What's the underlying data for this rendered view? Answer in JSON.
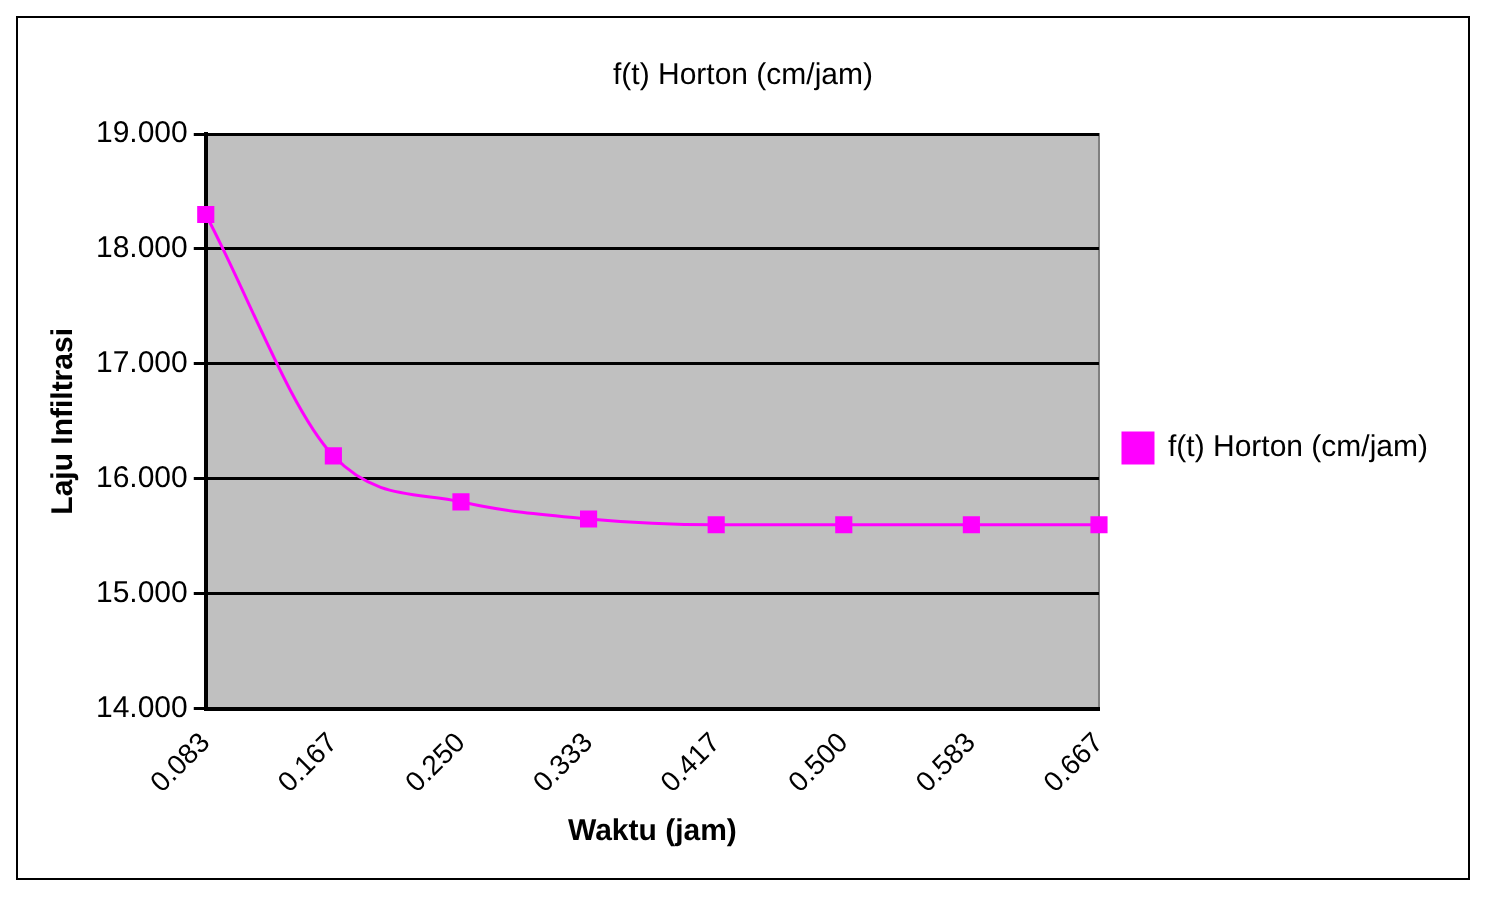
{
  "chart_data": {
    "type": "line",
    "title": "f(t) Horton (cm/jam)",
    "xlabel": "Waktu (jam)",
    "ylabel": "Laju Infiltrasi",
    "categories": [
      "0.083",
      "0.167",
      "0.250",
      "0.333",
      "0.417",
      "0.500",
      "0.583",
      "0.667"
    ],
    "series": [
      {
        "name": "f(t) Horton (cm/jam)",
        "color": "#ff00ff",
        "values": [
          18.3,
          16.2,
          15.8,
          15.65,
          15.6,
          15.6,
          15.6,
          15.6
        ]
      }
    ],
    "ylim": [
      14,
      19
    ],
    "yticks": [
      {
        "value": 14,
        "label": "14.000"
      },
      {
        "value": 15,
        "label": "15.000"
      },
      {
        "value": 16,
        "label": "16.000"
      },
      {
        "value": 17,
        "label": "17.000"
      },
      {
        "value": 18,
        "label": "18.000"
      },
      {
        "value": 19,
        "label": "19.000"
      }
    ],
    "grid": "y",
    "legend": "right",
    "marker": "square",
    "line_style": "solid"
  }
}
